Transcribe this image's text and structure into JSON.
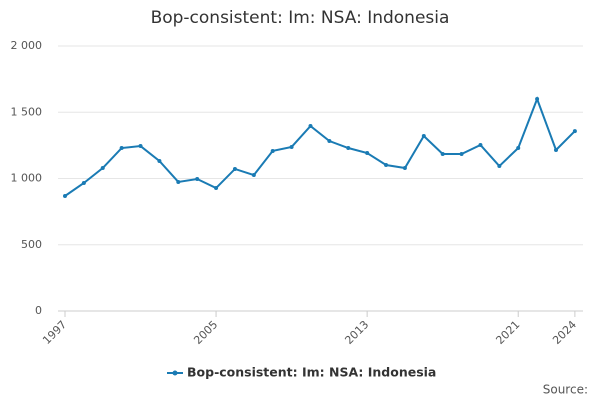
{
  "chart_data": {
    "type": "line",
    "title": "Bop-consistent: Im: NSA: Indonesia",
    "x": [
      1997,
      1998,
      1999,
      2000,
      2001,
      2002,
      2003,
      2004,
      2005,
      2006,
      2007,
      2008,
      2009,
      2010,
      2011,
      2012,
      2013,
      2014,
      2015,
      2016,
      2017,
      2018,
      2019,
      2020,
      2021,
      2022,
      2023,
      2024
    ],
    "series": [
      {
        "name": "Bop-consistent: Im: NSA: Indonesia",
        "color": "#1a7bb4",
        "values": [
          868,
          966,
          1079,
          1230,
          1245,
          1132,
          974,
          996,
          928,
          1072,
          1026,
          1208,
          1238,
          1396,
          1283,
          1230,
          1192,
          1102,
          1079,
          1321,
          1185,
          1185,
          1253,
          1094,
          1230,
          1600,
          1215,
          1358
        ]
      }
    ],
    "xlim": [
      1996.63,
      2024.43
    ],
    "xticks": [
      1997,
      2005,
      2013,
      2021,
      2024
    ],
    "ylim": [
      0,
      2000
    ],
    "yticks": [
      0,
      500,
      {
        "value": 1000,
        "label": "1 000"
      },
      {
        "value": 1500,
        "label": "1 500"
      },
      {
        "value": 2000,
        "label": "2 000"
      }
    ],
    "grid": true,
    "legend": "bottom",
    "source": "Source:"
  }
}
